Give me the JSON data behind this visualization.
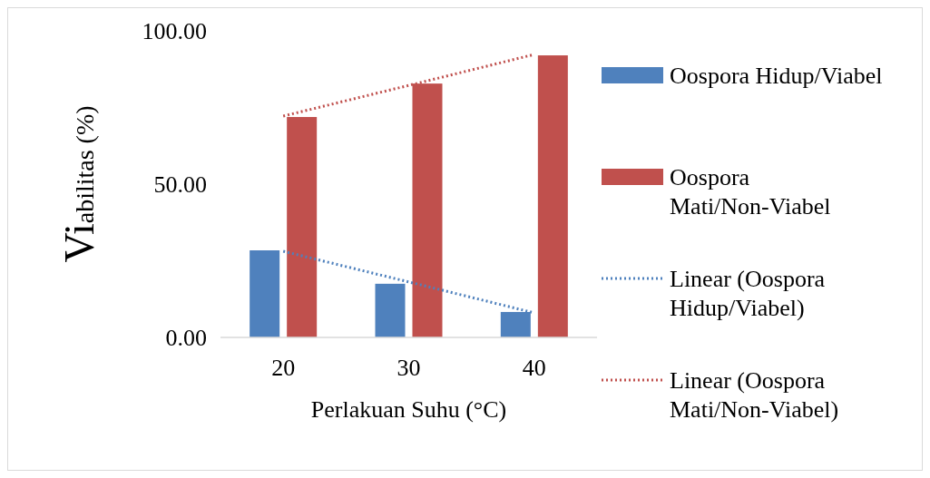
{
  "chart_data": {
    "type": "bar",
    "xlabel": "Perlakuan Suhu (°C)",
    "ylabel": "Viabilitas (%)",
    "categories": [
      "20",
      "30",
      "40"
    ],
    "series": [
      {
        "name": "Oospora Hidup/Viabel",
        "color": "#4f81bd",
        "values": [
          28.4,
          17.5,
          8.3
        ]
      },
      {
        "name": "Oospora Mati/Non-Viabel",
        "color": "#c0504d",
        "values": [
          71.9,
          82.8,
          92.0
        ]
      },
      {
        "name": "Linear (Oospora Hidup/Viabel)",
        "type": "line",
        "color": "#4f81bd",
        "line_style": "dotted",
        "values": [
          28.1,
          18.1,
          8.0
        ]
      },
      {
        "name": "Linear (Oospora Mati/Non-Viabel)",
        "type": "line",
        "color": "#c0504d",
        "line_style": "dotted",
        "values": [
          72.2,
          82.2,
          92.3
        ]
      }
    ],
    "ylim": [
      0,
      100
    ],
    "yticks": [
      {
        "value": 0,
        "label": "0.00"
      },
      {
        "value": 50,
        "label": "50.00"
      },
      {
        "value": 100,
        "label": "100.00"
      }
    ],
    "grid": false,
    "legend": "right"
  }
}
